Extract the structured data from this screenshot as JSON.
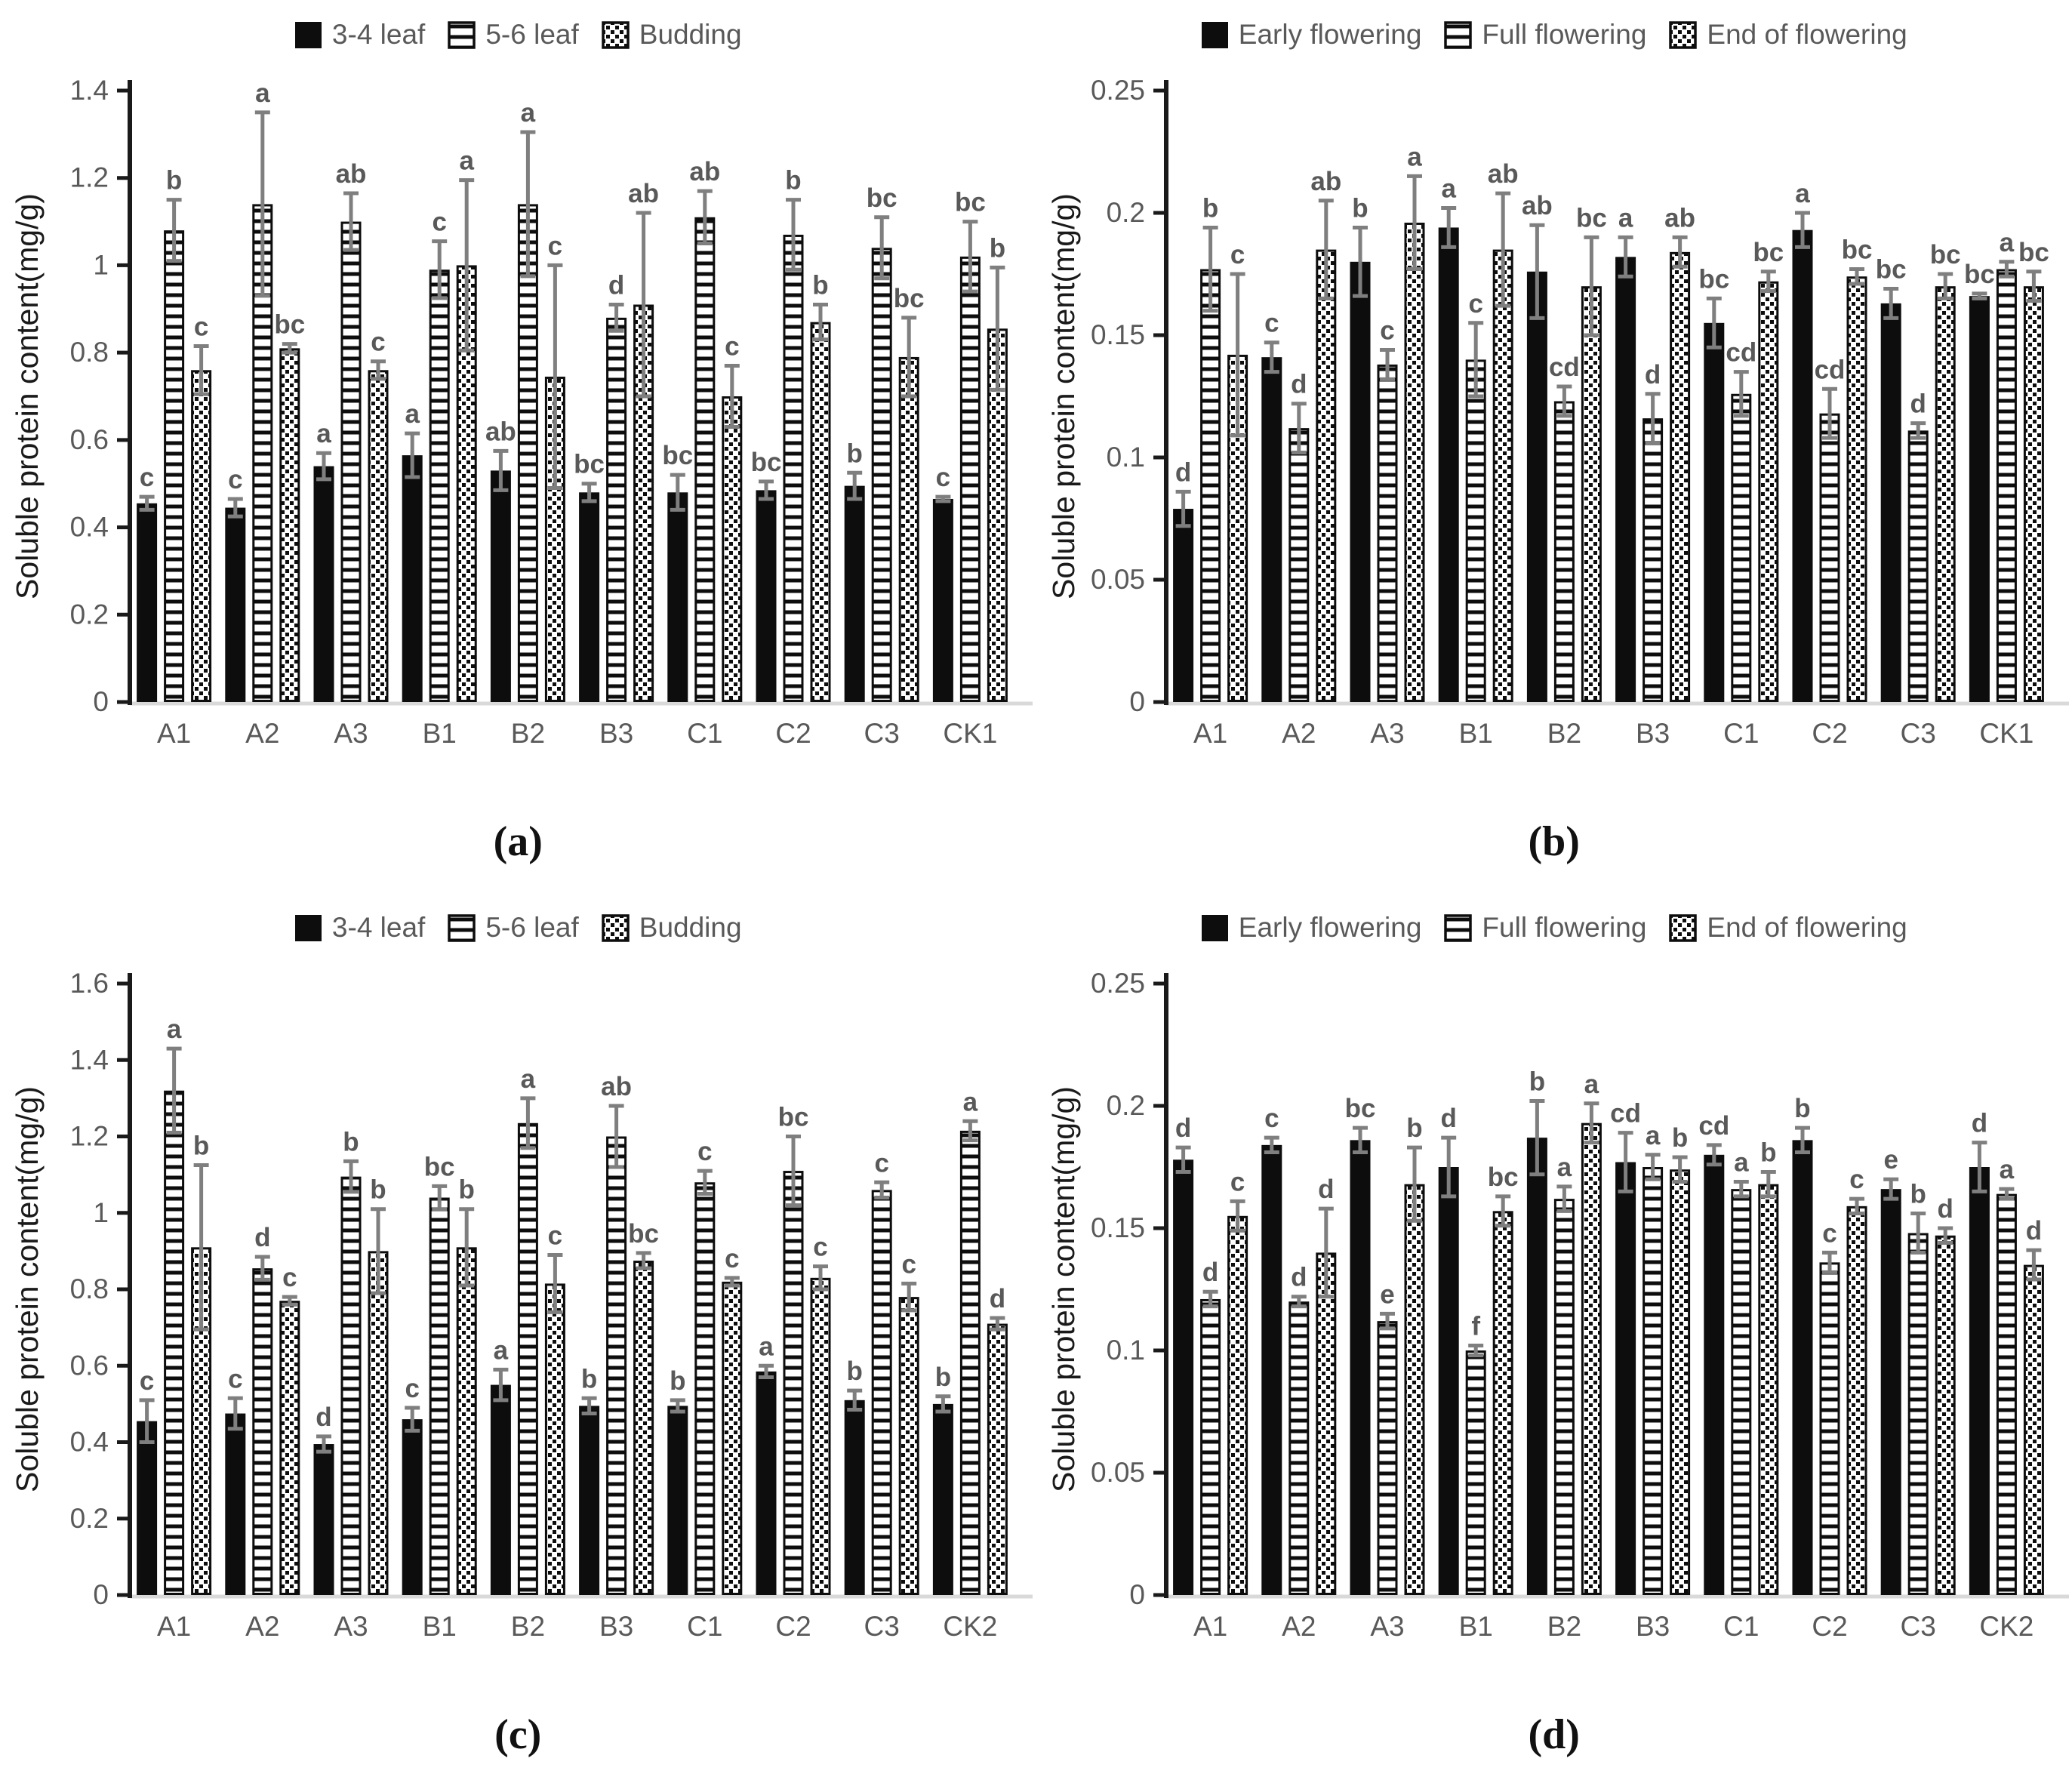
{
  "colors": {
    "bar": "#0d0d0d",
    "axis": "#1a1a1a",
    "tick_text": "#595959",
    "letter_text": "#595959",
    "error_bar": "#7f7f7f",
    "baseline": "#d9d9d9",
    "legend_text": "#595959"
  },
  "chart_data": [
    {
      "id": "a",
      "type": "bar",
      "panel_label": "(a)",
      "ylabel": "Soluble protein content(mg/g)",
      "ylim": [
        0,
        1.4
      ],
      "grid": false,
      "legend_position": "top",
      "ytick_values": [
        0,
        0.2,
        0.4,
        0.6,
        0.8,
        1,
        1.2,
        1.4
      ],
      "ytick_labels": [
        "0",
        "0.2",
        "0.4",
        "0.6",
        "0.8",
        "1",
        "1.2",
        "1.4"
      ],
      "categories": [
        "A1",
        "A2",
        "A3",
        "B1",
        "B2",
        "B3",
        "C1",
        "C2",
        "C3",
        "CK1"
      ],
      "series": [
        {
          "name": "3-4 leaf",
          "pattern": "solid",
          "values": [
            0.455,
            0.445,
            0.54,
            0.565,
            0.53,
            0.48,
            0.48,
            0.485,
            0.495,
            0.465
          ],
          "errors": [
            0.015,
            0.02,
            0.03,
            0.05,
            0.045,
            0.02,
            0.04,
            0.02,
            0.03,
            0.005
          ],
          "letters": [
            "c",
            "c",
            "a",
            "a",
            "ab",
            "bc",
            "bc",
            "bc",
            "b",
            "c"
          ]
        },
        {
          "name": "5-6 leaf",
          "pattern": "hstripe",
          "values": [
            1.08,
            1.14,
            1.1,
            0.99,
            1.14,
            0.88,
            1.11,
            1.07,
            1.04,
            1.02
          ],
          "errors": [
            0.07,
            0.21,
            0.065,
            0.065,
            0.165,
            0.03,
            0.06,
            0.08,
            0.07,
            0.08
          ],
          "letters": [
            "b",
            "a",
            "ab",
            "c",
            "a",
            "d",
            "ab",
            "b",
            "bc",
            "bc"
          ]
        },
        {
          "name": "Budding",
          "pattern": "checker",
          "values": [
            0.76,
            0.81,
            0.76,
            1.0,
            0.745,
            0.91,
            0.7,
            0.87,
            0.79,
            0.855
          ],
          "errors": [
            0.055,
            0.01,
            0.02,
            0.195,
            0.255,
            0.21,
            0.07,
            0.04,
            0.09,
            0.14
          ],
          "letters": [
            "c",
            "bc",
            "c",
            "a",
            "c",
            "ab",
            "c",
            "b",
            "bc",
            "b"
          ]
        }
      ]
    },
    {
      "id": "b",
      "type": "bar",
      "panel_label": "(b)",
      "ylabel": "Soluble protein content(mg/g)",
      "ylim": [
        0,
        0.25
      ],
      "grid": false,
      "legend_position": "top",
      "ytick_values": [
        0,
        0.05,
        0.1,
        0.15,
        0.2,
        0.25
      ],
      "ytick_labels": [
        "0",
        "0.05",
        "0.1",
        "0.15",
        "0.2",
        "0.25"
      ],
      "categories": [
        "A1",
        "A2",
        "A3",
        "B1",
        "B2",
        "B3",
        "C1",
        "C2",
        "C3",
        "CK1"
      ],
      "series": [
        {
          "name": "Early flowering",
          "pattern": "solid",
          "values": [
            0.079,
            0.141,
            0.18,
            0.194,
            0.176,
            0.182,
            0.155,
            0.193,
            0.163,
            0.166
          ],
          "errors": [
            0.007,
            0.006,
            0.014,
            0.008,
            0.019,
            0.008,
            0.01,
            0.007,
            0.006,
            0.001
          ],
          "letters": [
            "d",
            "c",
            "b",
            "a",
            "ab",
            "a",
            "bc",
            "a",
            "bc",
            "bc"
          ]
        },
        {
          "name": "Full flowering",
          "pattern": "hstripe",
          "values": [
            0.177,
            0.112,
            0.138,
            0.14,
            0.123,
            0.116,
            0.126,
            0.118,
            0.111,
            0.177
          ],
          "errors": [
            0.017,
            0.01,
            0.006,
            0.015,
            0.006,
            0.01,
            0.009,
            0.01,
            0.003,
            0.003
          ],
          "letters": [
            "b",
            "d",
            "c",
            "c",
            "cd",
            "d",
            "cd",
            "cd",
            "d",
            "a"
          ]
        },
        {
          "name": "End of flowering",
          "pattern": "checker",
          "values": [
            0.142,
            0.185,
            0.196,
            0.185,
            0.17,
            0.184,
            0.172,
            0.174,
            0.17,
            0.17
          ],
          "errors": [
            0.033,
            0.02,
            0.019,
            0.023,
            0.02,
            0.006,
            0.004,
            0.003,
            0.005,
            0.006
          ],
          "letters": [
            "c",
            "ab",
            "a",
            "ab",
            "bc",
            "ab",
            "bc",
            "bc",
            "bc",
            "bc"
          ]
        }
      ]
    },
    {
      "id": "c",
      "type": "bar",
      "panel_label": "(c)",
      "ylabel": "Soluble protein content(mg/g)",
      "ylim": [
        0,
        1.6
      ],
      "grid": false,
      "legend_position": "top",
      "ytick_values": [
        0,
        0.2,
        0.4,
        0.6,
        0.8,
        1,
        1.2,
        1.4,
        1.6
      ],
      "ytick_labels": [
        "0",
        "0.2",
        "0.4",
        "0.6",
        "0.8",
        "1",
        "1.2",
        "1.4",
        "1.6"
      ],
      "categories": [
        "A1",
        "A2",
        "A3",
        "B1",
        "B2",
        "B3",
        "C1",
        "C2",
        "C3",
        "CK2"
      ],
      "series": [
        {
          "name": "3-4 leaf",
          "pattern": "solid",
          "values": [
            0.455,
            0.475,
            0.395,
            0.46,
            0.55,
            0.495,
            0.495,
            0.585,
            0.51,
            0.5
          ],
          "errors": [
            0.055,
            0.04,
            0.02,
            0.03,
            0.04,
            0.02,
            0.015,
            0.015,
            0.025,
            0.02
          ],
          "letters": [
            "c",
            "c",
            "d",
            "c",
            "a",
            "b",
            "b",
            "a",
            "b",
            "b"
          ]
        },
        {
          "name": "5-6 leaf",
          "pattern": "hstripe",
          "values": [
            1.32,
            0.855,
            1.095,
            1.04,
            1.235,
            1.2,
            1.08,
            1.11,
            1.06,
            1.215
          ],
          "errors": [
            0.11,
            0.03,
            0.04,
            0.03,
            0.065,
            0.08,
            0.03,
            0.09,
            0.02,
            0.025
          ],
          "letters": [
            "a",
            "d",
            "b",
            "bc",
            "a",
            "ab",
            "c",
            "bc",
            "c",
            "a"
          ]
        },
        {
          "name": "Budding",
          "pattern": "checker",
          "values": [
            0.91,
            0.77,
            0.9,
            0.91,
            0.815,
            0.875,
            0.82,
            0.83,
            0.78,
            0.71
          ],
          "errors": [
            0.215,
            0.01,
            0.11,
            0.1,
            0.075,
            0.02,
            0.01,
            0.03,
            0.035,
            0.015
          ],
          "letters": [
            "b",
            "c",
            "b",
            "b",
            "c",
            "bc",
            "c",
            "c",
            "c",
            "d"
          ]
        }
      ]
    },
    {
      "id": "d",
      "type": "bar",
      "panel_label": "(d)",
      "ylabel": "Soluble protein content(mg/g)",
      "ylim": [
        0,
        0.25
      ],
      "grid": false,
      "legend_position": "top",
      "ytick_values": [
        0,
        0.05,
        0.1,
        0.15,
        0.2,
        0.25
      ],
      "ytick_labels": [
        "0",
        "0.05",
        "0.1",
        "0.15",
        "0.2",
        "0.25"
      ],
      "categories": [
        "A1",
        "A2",
        "A3",
        "B1",
        "B2",
        "B3",
        "C1",
        "C2",
        "C3",
        "CK2"
      ],
      "series": [
        {
          "name": "Early flowering",
          "pattern": "solid",
          "values": [
            0.178,
            0.184,
            0.186,
            0.175,
            0.187,
            0.177,
            0.18,
            0.186,
            0.166,
            0.175
          ],
          "errors": [
            0.005,
            0.003,
            0.005,
            0.012,
            0.015,
            0.012,
            0.004,
            0.005,
            0.004,
            0.01
          ],
          "letters": [
            "d",
            "c",
            "bc",
            "d",
            "b",
            "cd",
            "cd",
            "b",
            "e",
            "d"
          ]
        },
        {
          "name": "Full flowering",
          "pattern": "hstripe",
          "values": [
            0.121,
            0.12,
            0.112,
            0.1,
            0.162,
            0.175,
            0.166,
            0.136,
            0.148,
            0.164
          ],
          "errors": [
            0.003,
            0.002,
            0.003,
            0.002,
            0.005,
            0.005,
            0.003,
            0.004,
            0.008,
            0.002
          ],
          "letters": [
            "d",
            "d",
            "e",
            "f",
            "a",
            "a",
            "a",
            "c",
            "b",
            "a"
          ]
        },
        {
          "name": "End of flowering",
          "pattern": "checker",
          "values": [
            0.155,
            0.14,
            0.168,
            0.157,
            0.193,
            0.174,
            0.168,
            0.159,
            0.147,
            0.135
          ],
          "errors": [
            0.006,
            0.018,
            0.015,
            0.006,
            0.008,
            0.005,
            0.005,
            0.003,
            0.003,
            0.006
          ],
          "letters": [
            "c",
            "d",
            "b",
            "bc",
            "a",
            "b",
            "b",
            "c",
            "d",
            "d"
          ]
        }
      ]
    }
  ]
}
